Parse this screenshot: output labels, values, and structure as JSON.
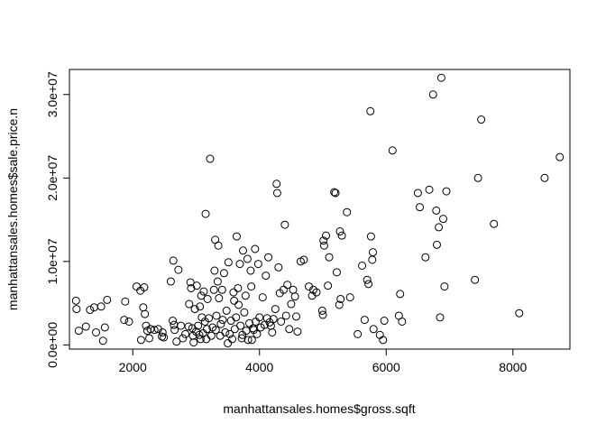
{
  "chart_data": {
    "type": "scatter",
    "xlabel": "manhattansales.homes$gross.sqft",
    "ylabel": "manhattansales.homes$sale.price.n",
    "xlim": [
      1000,
      8900
    ],
    "ylim": [
      -500000,
      33000000
    ],
    "x_ticks": [
      2000,
      4000,
      6000,
      8000
    ],
    "x_tick_labels": [
      "2000",
      "4000",
      "6000",
      "8000"
    ],
    "y_ticks": [
      0,
      10000000,
      20000000,
      30000000
    ],
    "y_tick_labels": [
      "0.0e+00",
      "1.0e+07",
      "2.0e+07",
      "3.0e+07"
    ],
    "grid": false,
    "marker": "open-circle",
    "points": [
      [
        1104,
        5300000
      ],
      [
        1112,
        4300000
      ],
      [
        1148,
        1700000
      ],
      [
        1260,
        2200000
      ],
      [
        1325,
        4200000
      ],
      [
        1390,
        4500000
      ],
      [
        1420,
        1500000
      ],
      [
        1500,
        4600000
      ],
      [
        1530,
        500000
      ],
      [
        1560,
        2100000
      ],
      [
        1595,
        5400000
      ],
      [
        1865,
        3000000
      ],
      [
        1880,
        5200000
      ],
      [
        1940,
        2800000
      ],
      [
        2060,
        7000000
      ],
      [
        2120,
        6500000
      ],
      [
        2130,
        600000
      ],
      [
        2165,
        4500000
      ],
      [
        2180,
        6900000
      ],
      [
        2190,
        3700000
      ],
      [
        2210,
        2300000
      ],
      [
        2230,
        1700000
      ],
      [
        2260,
        800000
      ],
      [
        2280,
        1900000
      ],
      [
        2340,
        1800000
      ],
      [
        2400,
        1900000
      ],
      [
        2460,
        1000000
      ],
      [
        2470,
        1500000
      ],
      [
        2490,
        900000
      ],
      [
        2600,
        7600000
      ],
      [
        2630,
        2900000
      ],
      [
        2640,
        10100000
      ],
      [
        2650,
        2400000
      ],
      [
        2660,
        1800000
      ],
      [
        2690,
        400000
      ],
      [
        2720,
        9000000
      ],
      [
        2760,
        2300000
      ],
      [
        2790,
        800000
      ],
      [
        2830,
        1300000
      ],
      [
        2880,
        2200000
      ],
      [
        2890,
        4900000
      ],
      [
        2910,
        7500000
      ],
      [
        2920,
        6800000
      ],
      [
        2940,
        2000000
      ],
      [
        2950,
        1100000
      ],
      [
        2960,
        300000
      ],
      [
        2980,
        4300000
      ],
      [
        3000,
        1600000
      ],
      [
        3010,
        7100000
      ],
      [
        3030,
        2300000
      ],
      [
        3050,
        1200000
      ],
      [
        3060,
        4600000
      ],
      [
        3070,
        700000
      ],
      [
        3080,
        5900000
      ],
      [
        3090,
        3300000
      ],
      [
        3110,
        1400000
      ],
      [
        3120,
        6400000
      ],
      [
        3140,
        2800000
      ],
      [
        3150,
        15700000
      ],
      [
        3160,
        700000
      ],
      [
        3170,
        1900000
      ],
      [
        3180,
        5500000
      ],
      [
        3200,
        3200000
      ],
      [
        3220,
        22300000
      ],
      [
        3240,
        1100000
      ],
      [
        3260,
        2100000
      ],
      [
        3280,
        6600000
      ],
      [
        3290,
        8900000
      ],
      [
        3300,
        12600000
      ],
      [
        3310,
        1800000
      ],
      [
        3320,
        3500000
      ],
      [
        3340,
        7600000
      ],
      [
        3350,
        11900000
      ],
      [
        3360,
        5600000
      ],
      [
        3380,
        1100000
      ],
      [
        3390,
        2500000
      ],
      [
        3410,
        6600000
      ],
      [
        3420,
        3000000
      ],
      [
        3440,
        8600000
      ],
      [
        3460,
        1500000
      ],
      [
        3480,
        4100000
      ],
      [
        3500,
        200000
      ],
      [
        3510,
        9900000
      ],
      [
        3530,
        1300000
      ],
      [
        3550,
        2900000
      ],
      [
        3570,
        700000
      ],
      [
        3590,
        6300000
      ],
      [
        3600,
        5300000
      ],
      [
        3610,
        1900000
      ],
      [
        3630,
        3300000
      ],
      [
        3640,
        13000000
      ],
      [
        3660,
        6800000
      ],
      [
        3670,
        4800000
      ],
      [
        3690,
        9700000
      ],
      [
        3700,
        2300000
      ],
      [
        3720,
        800000
      ],
      [
        3730,
        1200000
      ],
      [
        3740,
        11300000
      ],
      [
        3760,
        3900000
      ],
      [
        3780,
        5900000
      ],
      [
        3790,
        1700000
      ],
      [
        3810,
        10300000
      ],
      [
        3820,
        600000
      ],
      [
        3840,
        2600000
      ],
      [
        3860,
        8900000
      ],
      [
        3870,
        7000000
      ],
      [
        3880,
        600000
      ],
      [
        3900,
        2000000
      ],
      [
        3910,
        1800000
      ],
      [
        3930,
        11500000
      ],
      [
        3940,
        2800000
      ],
      [
        3960,
        1300000
      ],
      [
        3980,
        9700000
      ],
      [
        4000,
        3300000
      ],
      [
        4020,
        2100000
      ],
      [
        4050,
        5700000
      ],
      [
        4080,
        2400000
      ],
      [
        4100,
        8300000
      ],
      [
        4120,
        3200000
      ],
      [
        4140,
        10500000
      ],
      [
        4160,
        2700000
      ],
      [
        4180,
        2300000
      ],
      [
        4200,
        1500000
      ],
      [
        4220,
        3100000
      ],
      [
        4250,
        4300000
      ],
      [
        4270,
        19300000
      ],
      [
        4280,
        18200000
      ],
      [
        4300,
        9300000
      ],
      [
        4320,
        6200000
      ],
      [
        4340,
        2800000
      ],
      [
        4380,
        6600000
      ],
      [
        4400,
        14400000
      ],
      [
        4420,
        3500000
      ],
      [
        4440,
        7200000
      ],
      [
        4470,
        1900000
      ],
      [
        4500,
        4900000
      ],
      [
        4530,
        6600000
      ],
      [
        4560,
        5800000
      ],
      [
        4580,
        3400000
      ],
      [
        4600,
        1600000
      ],
      [
        4650,
        10000000
      ],
      [
        4700,
        10200000
      ],
      [
        4780,
        7000000
      ],
      [
        4830,
        5900000
      ],
      [
        4850,
        6600000
      ],
      [
        4900,
        6300000
      ],
      [
        4990,
        4100000
      ],
      [
        5000,
        3600000
      ],
      [
        5010,
        12500000
      ],
      [
        5020,
        11900000
      ],
      [
        5050,
        13100000
      ],
      [
        5080,
        7100000
      ],
      [
        5100,
        10500000
      ],
      [
        5180,
        18300000
      ],
      [
        5200,
        18200000
      ],
      [
        5220,
        8700000
      ],
      [
        5260,
        4800000
      ],
      [
        5270,
        13600000
      ],
      [
        5280,
        5500000
      ],
      [
        5300,
        13100000
      ],
      [
        5380,
        15900000
      ],
      [
        5430,
        5700000
      ],
      [
        5550,
        1300000
      ],
      [
        5620,
        9500000
      ],
      [
        5660,
        3000000
      ],
      [
        5700,
        7800000
      ],
      [
        5720,
        7300000
      ],
      [
        5750,
        28000000
      ],
      [
        5760,
        13000000
      ],
      [
        5780,
        10200000
      ],
      [
        5790,
        11100000
      ],
      [
        5800,
        1900000
      ],
      [
        5900,
        1200000
      ],
      [
        5950,
        600000
      ],
      [
        5970,
        2900000
      ],
      [
        6100,
        23300000
      ],
      [
        6200,
        3500000
      ],
      [
        6220,
        6100000
      ],
      [
        6250,
        2800000
      ],
      [
        6500,
        18200000
      ],
      [
        6530,
        16500000
      ],
      [
        6620,
        10500000
      ],
      [
        6680,
        18600000
      ],
      [
        6740,
        30000000
      ],
      [
        6790,
        16100000
      ],
      [
        6800,
        12000000
      ],
      [
        6830,
        14100000
      ],
      [
        6850,
        3300000
      ],
      [
        6870,
        32000000
      ],
      [
        6900,
        15100000
      ],
      [
        6920,
        7000000
      ],
      [
        6950,
        18400000
      ],
      [
        7400,
        7800000
      ],
      [
        7450,
        20000000
      ],
      [
        7500,
        27000000
      ],
      [
        7700,
        14500000
      ],
      [
        8100,
        3800000
      ],
      [
        8500,
        20000000
      ],
      [
        8740,
        22500000
      ]
    ]
  }
}
